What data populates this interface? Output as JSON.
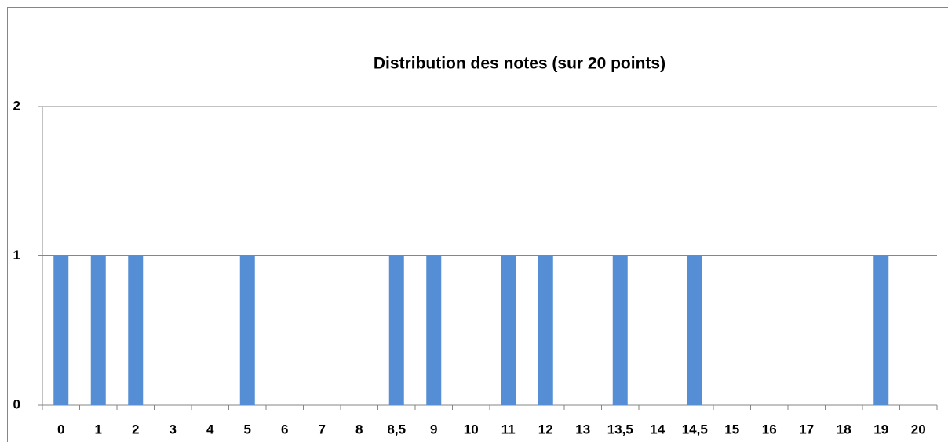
{
  "chart_data": {
    "type": "bar",
    "title": "Distribution des notes (sur 20 points)",
    "categories": [
      "0",
      "1",
      "2",
      "3",
      "4",
      "5",
      "6",
      "7",
      "8",
      "8,5",
      "9",
      "10",
      "11",
      "12",
      "13",
      "13,5",
      "14",
      "14,5",
      "15",
      "16",
      "17",
      "18",
      "19",
      "20"
    ],
    "values": [
      1,
      1,
      1,
      0,
      0,
      1,
      0,
      0,
      0,
      1,
      1,
      0,
      1,
      1,
      0,
      1,
      0,
      1,
      0,
      0,
      0,
      0,
      1,
      0
    ],
    "color": "#558ed5",
    "ylim": [
      0,
      2
    ],
    "yticks": [
      0,
      1,
      2
    ],
    "grid": true
  }
}
